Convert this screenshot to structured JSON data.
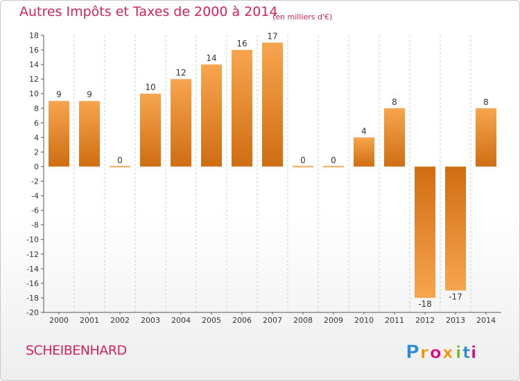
{
  "title": "Autres Impôts et Taxes de 2000 à 2014",
  "subtitle": "(en milliers d'€)",
  "commune": "SCHEIBENHARD",
  "logo": {
    "letters": [
      "P",
      "r",
      "o",
      "x",
      "i",
      "t",
      "i"
    ],
    "colors": [
      "#2e8bd6",
      "#f39200",
      "#e6007e",
      "#f39200",
      "#7ab51d",
      "#2e8bd6",
      "#e6007e"
    ]
  },
  "colors": {
    "bar_light": "#f7a54f",
    "bar_dark": "#cf6d12",
    "axis": "#555555",
    "grid": "#cccccc",
    "text": "#333333",
    "accent": "#d2235a"
  },
  "chart_data": {
    "type": "bar",
    "categories": [
      "2000",
      "2001",
      "2002",
      "2003",
      "2004",
      "2005",
      "2006",
      "2007",
      "2008",
      "2009",
      "2010",
      "2011",
      "2012",
      "2013",
      "2014"
    ],
    "values": [
      9,
      9,
      0,
      10,
      12,
      14,
      16,
      17,
      0,
      0,
      4,
      8,
      -18,
      -17,
      8
    ],
    "value_labels": [
      "9",
      "9",
      "0",
      "10",
      "12",
      "14",
      "16",
      "17",
      "0",
      "0",
      "4",
      "8",
      "-18",
      "-17",
      "8"
    ],
    "ylim": [
      -20,
      18
    ],
    "yticks": [
      18,
      16,
      14,
      12,
      10,
      8,
      6,
      4,
      2,
      0,
      -2,
      -4,
      -6,
      -8,
      -10,
      -12,
      -14,
      -16,
      -18,
      -20
    ],
    "ytick_labels": [
      "18",
      "16",
      "14",
      "12",
      "10",
      "8",
      "6",
      "4",
      "2",
      "0",
      "-2",
      "-4",
      "-6",
      "-8",
      "-10",
      "-12",
      "-14",
      "-16",
      "-18",
      "-20"
    ],
    "grid": "vertical-dashed",
    "legend": "none"
  }
}
